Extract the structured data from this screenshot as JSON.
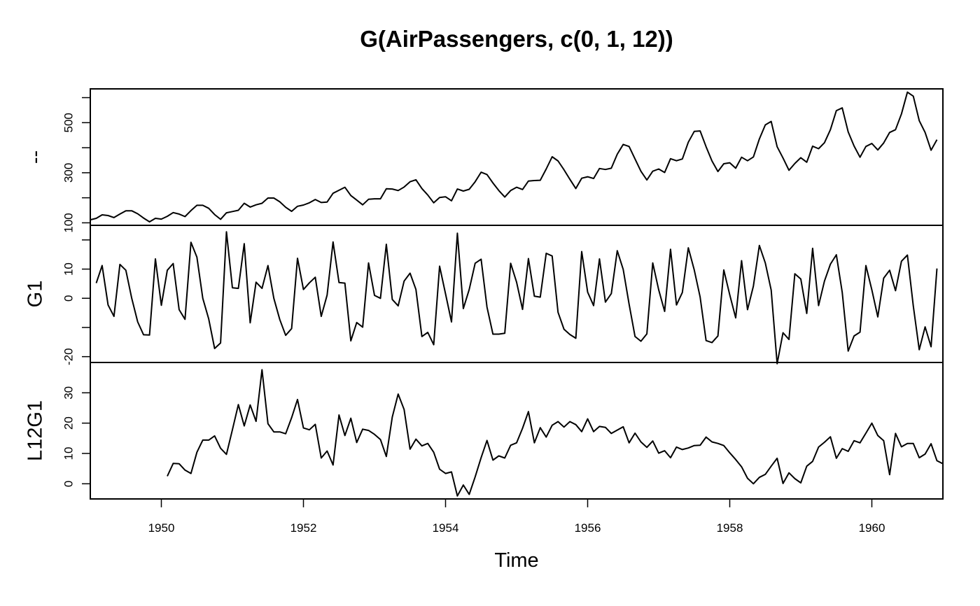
{
  "chart_data": {
    "type": "line",
    "title": "G(AirPassengers, c(0, 1, 12))",
    "xlabel": "Time",
    "start": 1949,
    "frequency": 12,
    "xlim": [
      1949,
      1961
    ],
    "x_ticks": [
      1950,
      1952,
      1954,
      1956,
      1958,
      1960
    ],
    "x_tick_labels": [
      "1950",
      "1952",
      "1954",
      "1956",
      "1958",
      "1960"
    ],
    "panels": [
      {
        "name": "--",
        "ylabel": "--",
        "ylim": [
          90,
          635
        ],
        "y_ticks": [
          100,
          200,
          300,
          400,
          500,
          600
        ],
        "y_tick_labels": [
          "100",
          "",
          "300",
          "",
          "500",
          ""
        ],
        "values": [
          112,
          118,
          132,
          129,
          121,
          135,
          148,
          148,
          136,
          119,
          104,
          118,
          115,
          126,
          141,
          135,
          125,
          149,
          170,
          170,
          158,
          133,
          114,
          140,
          145,
          150,
          178,
          163,
          172,
          178,
          199,
          199,
          184,
          162,
          146,
          166,
          171,
          180,
          193,
          181,
          183,
          218,
          230,
          242,
          209,
          191,
          172,
          194,
          196,
          196,
          236,
          235,
          229,
          243,
          264,
          272,
          237,
          211,
          180,
          201,
          204,
          188,
          235,
          227,
          234,
          264,
          302,
          293,
          259,
          229,
          203,
          229,
          242,
          233,
          267,
          269,
          270,
          315,
          364,
          347,
          312,
          274,
          237,
          278,
          284,
          277,
          317,
          313,
          318,
          374,
          413,
          405,
          355,
          306,
          271,
          306,
          315,
          301,
          356,
          348,
          355,
          422,
          465,
          467,
          404,
          347,
          305,
          336,
          340,
          318,
          362,
          348,
          363,
          435,
          491,
          505,
          404,
          359,
          310,
          337,
          360,
          342,
          406,
          396,
          420,
          472,
          548,
          559,
          463,
          407,
          362,
          405,
          417,
          391,
          419,
          461,
          472,
          535,
          622,
          606,
          508,
          461,
          390,
          432
        ]
      },
      {
        "name": "G1",
        "ylabel": "G1",
        "ylim": [
          -22,
          25
        ],
        "y_ticks": [
          -20,
          -10,
          0,
          10,
          20
        ],
        "y_tick_labels": [
          "-20",
          "",
          "0",
          "10",
          ""
        ],
        "values": [
          null,
          5.2,
          11.2,
          -2.3,
          -6.2,
          11.6,
          9.6,
          0,
          -8.1,
          -12.5,
          -12.6,
          13.5,
          -2.4,
          9.6,
          11.9,
          -3.9,
          -7.2,
          19.2,
          14.1,
          0,
          -7.1,
          -17.2,
          -15.3,
          22.8,
          3.6,
          3.4,
          18.7,
          -8.4,
          5.5,
          3.4,
          11.2,
          0,
          -7.3,
          -12.7,
          -10.4,
          13.7,
          3,
          5.3,
          7.2,
          -6.2,
          1.1,
          19.3,
          5.4,
          5.2,
          -14.6,
          -8.3,
          -9.9,
          12.1,
          1,
          0,
          18.5,
          -0.4,
          -2.6,
          5.9,
          8.6,
          3,
          -13.1,
          -11.7,
          -15.9,
          11,
          1.5,
          -8.1,
          22.3,
          -3.5,
          3,
          12,
          13.4,
          -3,
          -12.3,
          -12.3,
          -12,
          12,
          5.5,
          -3.8,
          13.6,
          0.7,
          0.4,
          15.4,
          14.5,
          -4.8,
          -10.6,
          -12.4,
          -13.7,
          16,
          2.1,
          -2.5,
          13.5,
          -1.3,
          1.6,
          16.3,
          9.9,
          -2,
          -13.1,
          -14.7,
          -12.2,
          12.1,
          2.9,
          -4.5,
          16.8,
          -2.3,
          2,
          17.3,
          9.7,
          0.4,
          -14.5,
          -15.2,
          -12.9,
          9.7,
          1.2,
          -6.7,
          12.9,
          -3.9,
          4.2,
          18.1,
          12.1,
          2.8,
          -22.4,
          -11.8,
          -14.1,
          8.4,
          6.6,
          -5.2,
          17.1,
          -2.5,
          5.9,
          11.7,
          14.9,
          2,
          -18.1,
          -12.9,
          -11.6,
          11.2,
          2.9,
          -6.4,
          6.9,
          9.6,
          2.6,
          12.7,
          14.8,
          -2.6,
          -17.6,
          -9.8,
          -16.6,
          10.2
        ]
      },
      {
        "name": "L12G1",
        "ylabel": "L12G1",
        "ylim": [
          -5,
          40
        ],
        "y_ticks": [
          0,
          10,
          20,
          30
        ],
        "y_tick_labels": [
          "0",
          "10",
          "20",
          "30"
        ],
        "values": [
          null,
          null,
          null,
          null,
          null,
          null,
          null,
          null,
          null,
          null,
          null,
          null,
          null,
          2.5,
          6.7,
          6.6,
          4.5,
          3.4,
          10.4,
          14.4,
          14.4,
          15.8,
          11.7,
          9.7,
          17.8,
          26.1,
          19.1,
          26,
          20.6,
          37.6,
          19.8,
          17.1,
          17.1,
          16.5,
          21.8,
          27.8,
          18.4,
          17.8,
          19.6,
          8.5,
          10.8,
          6.2,
          22.7,
          15.9,
          21.6,
          13.6,
          18,
          17.6,
          16.3,
          14.6,
          9,
          22,
          29.6,
          24.5,
          11.4,
          14.7,
          12.5,
          13.3,
          10.4,
          4.8,
          3.4,
          3.9,
          -4,
          -0.4,
          -3.5,
          2.3,
          8.6,
          14.3,
          7.8,
          9.2,
          8.5,
          12.7,
          13.5,
          18.3,
          23.8,
          13.5,
          18.5,
          15.4,
          19.3,
          20.5,
          18.7,
          20.5,
          19.5,
          17.2,
          21.4,
          17.2,
          18.9,
          18.6,
          16.6,
          17.7,
          18.8,
          13.5,
          16.7,
          13.8,
          12,
          14.1,
          10.1,
          10.9,
          8.6,
          12.1,
          11.3,
          11.8,
          12.6,
          12.7,
          15.4,
          13.8,
          13.3,
          12.6,
          10.2,
          8,
          5.6,
          1.8,
          0,
          2.1,
          3.1,
          5.8,
          8.4,
          0.1,
          3.6,
          1.7,
          0.3,
          5.8,
          7.4,
          12.1,
          13.7,
          15.5,
          8.4,
          11.6,
          10.7,
          14.2,
          13.5,
          16.7,
          20,
          15.9,
          14.2,
          3,
          16.6,
          12.2,
          13.3,
          13.3,
          8.6,
          9.8,
          13.2,
          7.6,
          6.6
        ]
      }
    ]
  }
}
